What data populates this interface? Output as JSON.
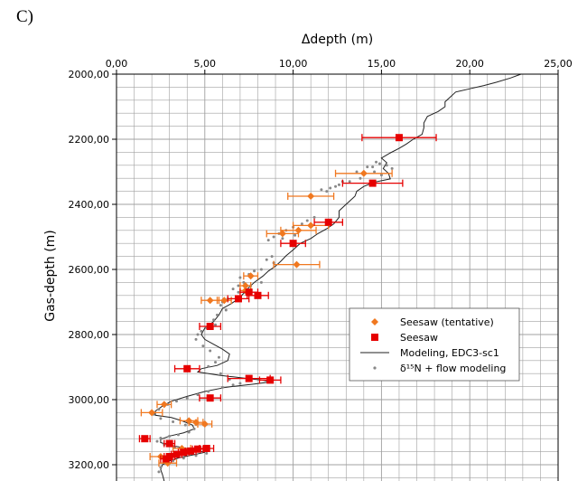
{
  "panel_label": "C)",
  "colors": {
    "seesaw": "#e60000",
    "seesaw_tentative": "#f07820",
    "model": "#222222",
    "d15n": "#888888",
    "grid": "#a0a0a0"
  },
  "chart_data": {
    "type": "scatter",
    "xlabel": "Δdepth (m)",
    "ylabel": "Gas-depth (m)",
    "xlim": [
      0,
      25
    ],
    "ylim": [
      3250,
      2000
    ],
    "y_inverted": true,
    "x_axis_position": "top",
    "x_ticks": [
      0,
      5,
      10,
      15,
      20,
      25
    ],
    "x_tick_labels": [
      "0,00",
      "5,00",
      "10,00",
      "15,00",
      "20,00",
      "25,00"
    ],
    "y_ticks": [
      2000,
      2200,
      2400,
      2600,
      2800,
      3000,
      3200
    ],
    "y_tick_labels": [
      "2000,00",
      "2200,00",
      "2400,00",
      "2600,00",
      "2800,00",
      "3000,00",
      "3200,00"
    ],
    "grid": true,
    "legend_position": "right",
    "series": [
      {
        "name": "Seesaw (tentative)",
        "marker": "diamond",
        "points": [
          {
            "x": 14.0,
            "y": 2305,
            "xerr": 1.6
          },
          {
            "x": 11.0,
            "y": 2375,
            "xerr": 1.3
          },
          {
            "x": 11.0,
            "y": 2465,
            "xerr": 1.0
          },
          {
            "x": 10.3,
            "y": 2480,
            "xerr": 1.0
          },
          {
            "x": 9.4,
            "y": 2490,
            "xerr": 0.9
          },
          {
            "x": 10.2,
            "y": 2585,
            "xerr": 1.3
          },
          {
            "x": 7.6,
            "y": 2620,
            "xerr": 0.4
          },
          {
            "x": 7.3,
            "y": 2650,
            "xerr": 0.3
          },
          {
            "x": 7.3,
            "y": 2665,
            "xerr": 0.3
          },
          {
            "x": 6.1,
            "y": 2695,
            "xerr": 0.4
          },
          {
            "x": 5.3,
            "y": 2695,
            "xerr": 0.5
          },
          {
            "x": 2.7,
            "y": 3015,
            "xerr": 0.4
          },
          {
            "x": 2.0,
            "y": 3040,
            "xerr": 0.6
          },
          {
            "x": 4.1,
            "y": 3065,
            "xerr": 0.5
          },
          {
            "x": 4.5,
            "y": 3070,
            "xerr": 0.4
          },
          {
            "x": 5.0,
            "y": 3075,
            "xerr": 0.4
          },
          {
            "x": 3.7,
            "y": 3150,
            "xerr": 0.5
          },
          {
            "x": 2.5,
            "y": 3175,
            "xerr": 0.6
          },
          {
            "x": 2.9,
            "y": 3195,
            "xerr": 0.5
          }
        ]
      },
      {
        "name": "Seesaw",
        "marker": "square",
        "points": [
          {
            "x": 16.0,
            "y": 2195,
            "xerr": 2.1
          },
          {
            "x": 14.5,
            "y": 2335,
            "xerr": 1.7
          },
          {
            "x": 12.0,
            "y": 2455,
            "xerr": 0.8
          },
          {
            "x": 10.0,
            "y": 2520,
            "xerr": 0.7
          },
          {
            "x": 8.0,
            "y": 2680,
            "xerr": 0.6
          },
          {
            "x": 7.5,
            "y": 2670,
            "xerr": 0.5
          },
          {
            "x": 6.9,
            "y": 2690,
            "xerr": 0.6
          },
          {
            "x": 5.3,
            "y": 2775,
            "xerr": 0.6
          },
          {
            "x": 4.0,
            "y": 2905,
            "xerr": 0.7
          },
          {
            "x": 7.5,
            "y": 2935,
            "xerr": 1.2
          },
          {
            "x": 8.7,
            "y": 2940,
            "xerr": 0.6
          },
          {
            "x": 5.3,
            "y": 2995,
            "xerr": 0.6
          },
          {
            "x": 1.6,
            "y": 3120,
            "xerr": 0.3
          },
          {
            "x": 3.0,
            "y": 3135,
            "xerr": 0.3
          },
          {
            "x": 5.1,
            "y": 3150,
            "xerr": 0.4
          },
          {
            "x": 4.6,
            "y": 3152,
            "xerr": 0.3
          },
          {
            "x": 4.2,
            "y": 3158,
            "xerr": 0.3
          },
          {
            "x": 3.8,
            "y": 3162,
            "xerr": 0.3
          },
          {
            "x": 3.4,
            "y": 3168,
            "xerr": 0.3
          },
          {
            "x": 3.0,
            "y": 3175,
            "xerr": 0.3
          },
          {
            "x": 2.8,
            "y": 3182,
            "xerr": 0.3
          }
        ]
      },
      {
        "name": "Modeling, EDC3-sc1",
        "type": "line",
        "points": [
          [
            22.9,
            2000
          ],
          [
            22.3,
            2012
          ],
          [
            21.5,
            2025
          ],
          [
            20.8,
            2035
          ],
          [
            20.0,
            2045
          ],
          [
            19.2,
            2055
          ],
          [
            18.9,
            2070
          ],
          [
            18.6,
            2085
          ],
          [
            18.6,
            2100
          ],
          [
            18.2,
            2115
          ],
          [
            17.6,
            2130
          ],
          [
            17.4,
            2150
          ],
          [
            17.4,
            2165
          ],
          [
            17.3,
            2185
          ],
          [
            16.8,
            2200
          ],
          [
            16.4,
            2215
          ],
          [
            16.0,
            2228
          ],
          [
            15.5,
            2242
          ],
          [
            15.0,
            2258
          ],
          [
            15.3,
            2272
          ],
          [
            15.1,
            2290
          ],
          [
            15.4,
            2305
          ],
          [
            15.5,
            2322
          ],
          [
            14.6,
            2332
          ],
          [
            14.0,
            2345
          ],
          [
            13.6,
            2360
          ],
          [
            13.5,
            2375
          ],
          [
            13.2,
            2390
          ],
          [
            12.9,
            2405
          ],
          [
            12.6,
            2420
          ],
          [
            12.6,
            2440
          ],
          [
            12.3,
            2460
          ],
          [
            11.9,
            2475
          ],
          [
            11.4,
            2490
          ],
          [
            11.0,
            2505
          ],
          [
            10.4,
            2520
          ],
          [
            10.0,
            2540
          ],
          [
            9.6,
            2558
          ],
          [
            9.3,
            2575
          ],
          [
            9.0,
            2590
          ],
          [
            8.6,
            2605
          ],
          [
            8.3,
            2620
          ],
          [
            7.8,
            2640
          ],
          [
            7.5,
            2655
          ],
          [
            7.3,
            2668
          ],
          [
            6.9,
            2690
          ],
          [
            6.5,
            2705
          ],
          [
            6.0,
            2720
          ],
          [
            5.8,
            2740
          ],
          [
            5.5,
            2760
          ],
          [
            5.0,
            2780
          ],
          [
            4.8,
            2800
          ],
          [
            5.0,
            2815
          ],
          [
            5.5,
            2830
          ],
          [
            6.0,
            2845
          ],
          [
            6.4,
            2860
          ],
          [
            6.3,
            2880
          ],
          [
            5.7,
            2895
          ],
          [
            4.8,
            2905
          ],
          [
            4.6,
            2915
          ],
          [
            5.8,
            2925
          ],
          [
            6.6,
            2930
          ],
          [
            7.4,
            2935
          ],
          [
            8.2,
            2940
          ],
          [
            8.8,
            2945
          ],
          [
            7.8,
            2952
          ],
          [
            6.2,
            2962
          ],
          [
            5.0,
            2975
          ],
          [
            4.0,
            2990
          ],
          [
            3.1,
            3005
          ],
          [
            2.6,
            3020
          ],
          [
            2.2,
            3035
          ],
          [
            2.2,
            3048
          ],
          [
            3.1,
            3055
          ],
          [
            3.7,
            3065
          ],
          [
            4.3,
            3078
          ],
          [
            4.4,
            3090
          ],
          [
            3.8,
            3102
          ],
          [
            3.0,
            3112
          ],
          [
            2.5,
            3122
          ],
          [
            2.5,
            3132
          ],
          [
            3.0,
            3140
          ],
          [
            3.8,
            3148
          ],
          [
            4.5,
            3155
          ],
          [
            5.0,
            3162
          ],
          [
            4.3,
            3170
          ],
          [
            3.6,
            3178
          ],
          [
            3.0,
            3188
          ],
          [
            2.6,
            3200
          ],
          [
            2.5,
            3215
          ],
          [
            2.6,
            3230
          ],
          [
            2.7,
            3250
          ]
        ]
      },
      {
        "name": "δ¹⁵N + flow modeling",
        "type": "scatter",
        "points": [
          [
            14.7,
            2270
          ],
          [
            14.9,
            2275
          ],
          [
            14.5,
            2285
          ],
          [
            15.3,
            2280
          ],
          [
            15.6,
            2290
          ],
          [
            14.6,
            2300
          ],
          [
            15.0,
            2310
          ],
          [
            13.8,
            2320
          ],
          [
            13.2,
            2330
          ],
          [
            12.6,
            2340
          ],
          [
            12.1,
            2350
          ],
          [
            11.6,
            2355
          ],
          [
            12.4,
            2345
          ],
          [
            11.9,
            2360
          ],
          [
            12.8,
            2330
          ],
          [
            13.6,
            2300
          ],
          [
            14.2,
            2285
          ],
          [
            11.2,
            2440
          ],
          [
            10.8,
            2450
          ],
          [
            10.5,
            2460
          ],
          [
            10.0,
            2470
          ],
          [
            9.6,
            2480
          ],
          [
            9.2,
            2490
          ],
          [
            8.9,
            2500
          ],
          [
            8.6,
            2510
          ],
          [
            9.4,
            2505
          ],
          [
            10.1,
            2495
          ],
          [
            8.8,
            2560
          ],
          [
            8.5,
            2570
          ],
          [
            8.9,
            2580
          ],
          [
            8.2,
            2600
          ],
          [
            7.8,
            2605
          ],
          [
            7.5,
            2615
          ],
          [
            7.0,
            2625
          ],
          [
            7.2,
            2640
          ],
          [
            6.9,
            2650
          ],
          [
            6.6,
            2660
          ],
          [
            6.9,
            2670
          ],
          [
            7.6,
            2650
          ],
          [
            8.2,
            2640
          ],
          [
            6.3,
            2690
          ],
          [
            6.0,
            2700
          ],
          [
            5.9,
            2710
          ],
          [
            6.2,
            2725
          ],
          [
            5.7,
            2740
          ],
          [
            5.5,
            2755
          ],
          [
            5.6,
            2770
          ],
          [
            5.1,
            2780
          ],
          [
            4.8,
            2790
          ],
          [
            4.6,
            2800
          ],
          [
            4.5,
            2815
          ],
          [
            4.9,
            2835
          ],
          [
            5.3,
            2850
          ],
          [
            5.8,
            2870
          ],
          [
            5.6,
            2885
          ],
          [
            5.2,
            2898
          ],
          [
            5.9,
            2920
          ],
          [
            6.4,
            2938
          ],
          [
            7.0,
            2950
          ],
          [
            6.6,
            2955
          ],
          [
            6.0,
            2962
          ],
          [
            5.2,
            2975
          ],
          [
            4.6,
            2985
          ],
          [
            4.0,
            2995
          ],
          [
            3.4,
            3005
          ],
          [
            2.9,
            3015
          ],
          [
            2.4,
            3030
          ],
          [
            2.1,
            3045
          ],
          [
            2.5,
            3058
          ],
          [
            3.2,
            3068
          ],
          [
            3.9,
            3078
          ],
          [
            4.4,
            3090
          ],
          [
            4.1,
            3100
          ],
          [
            3.5,
            3108
          ],
          [
            3.0,
            3112
          ],
          [
            2.5,
            3118
          ],
          [
            2.3,
            3128
          ],
          [
            2.7,
            3138
          ],
          [
            3.3,
            3146
          ],
          [
            4.0,
            3152
          ],
          [
            4.7,
            3158
          ],
          [
            5.1,
            3165
          ],
          [
            4.5,
            3172
          ],
          [
            3.8,
            3180
          ],
          [
            3.2,
            3188
          ],
          [
            2.8,
            3196
          ],
          [
            2.5,
            3208
          ],
          [
            2.4,
            3222
          ]
        ]
      }
    ]
  }
}
